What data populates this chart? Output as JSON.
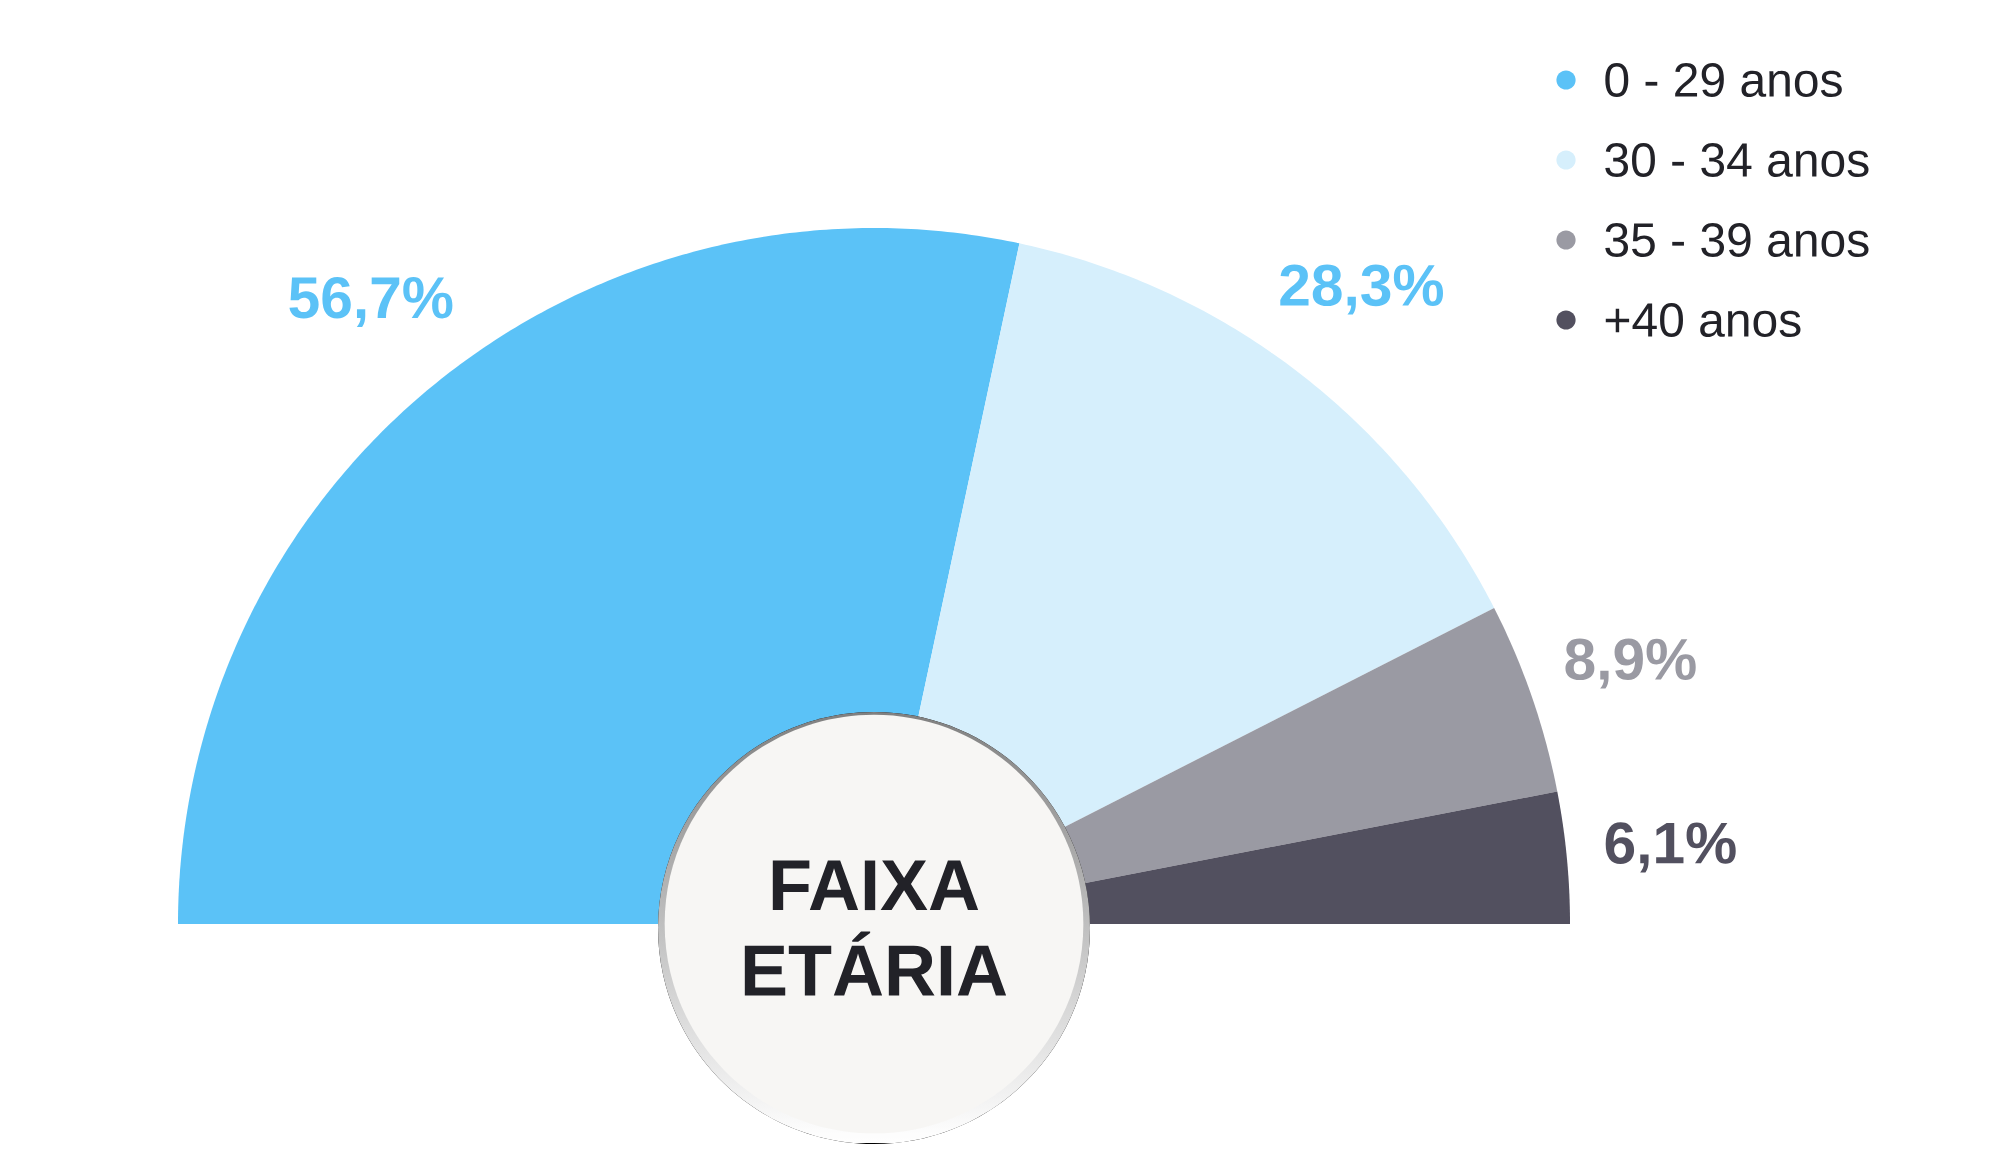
{
  "chart_data": {
    "type": "donut",
    "title": "FAIXA ETÁRIA",
    "categories": [
      "0 - 29 anos",
      "30 - 34 anos",
      "35 - 39 anos",
      "+40 anos"
    ],
    "values": [
      56.7,
      28.3,
      8.9,
      6.1
    ],
    "colors": [
      "#5bc2f7",
      "#d6effc",
      "#9a9aa3",
      "#52505f"
    ],
    "value_labels": [
      "56,7%",
      "28,3%",
      "8,9%",
      "6,1%"
    ],
    "legend": "top right"
  }
}
